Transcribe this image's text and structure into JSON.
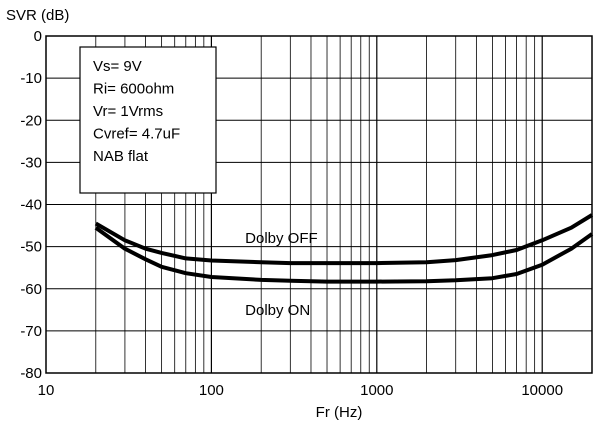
{
  "chart_data": {
    "type": "line",
    "ylabel": "SVR (dB)",
    "xlabel": "Fr (Hz)",
    "x_scale": "log",
    "xlim": [
      10,
      20000
    ],
    "ylim": [
      -80,
      0
    ],
    "grid": true,
    "x_tick_labels": [
      {
        "value": 10,
        "label": "10"
      },
      {
        "value": 100,
        "label": "100"
      },
      {
        "value": 1000,
        "label": "1000"
      },
      {
        "value": 10000,
        "label": "10000"
      }
    ],
    "y_tick_labels": [
      {
        "value": 0,
        "label": "0"
      },
      {
        "value": -10,
        "label": "-10"
      },
      {
        "value": -20,
        "label": "-20"
      },
      {
        "value": -30,
        "label": "-30"
      },
      {
        "value": -40,
        "label": "-40"
      },
      {
        "value": -50,
        "label": "-50"
      },
      {
        "value": -60,
        "label": "-60"
      },
      {
        "value": -70,
        "label": "-70"
      },
      {
        "value": -80,
        "label": "-80"
      }
    ],
    "conditions_box": [
      "Vs= 9V",
      "Ri= 600ohm",
      "Vr= 1Vrms",
      "Cvref= 4.7uF",
      "NAB flat"
    ],
    "series": [
      {
        "name": "Dolby OFF",
        "x": [
          20,
          30,
          40,
          50,
          70,
          100,
          200,
          300,
          500,
          1000,
          2000,
          3000,
          5000,
          7000,
          10000,
          15000,
          20000
        ],
        "y": [
          -44.5,
          -48.5,
          -50.5,
          -51.5,
          -52.8,
          -53.3,
          -53.7,
          -53.9,
          -53.9,
          -53.9,
          -53.7,
          -53.2,
          -52.0,
          -50.8,
          -48.5,
          -45.5,
          -42.5
        ]
      },
      {
        "name": "Dolby ON",
        "x": [
          20,
          30,
          40,
          50,
          70,
          100,
          200,
          300,
          500,
          1000,
          2000,
          3000,
          5000,
          7000,
          10000,
          15000,
          20000
        ],
        "y": [
          -45.5,
          -50.5,
          -53.0,
          -54.8,
          -56.3,
          -57.2,
          -57.9,
          -58.1,
          -58.3,
          -58.3,
          -58.2,
          -58.0,
          -57.5,
          -56.5,
          -54.3,
          -50.5,
          -47.0
        ]
      }
    ],
    "series_labels": [
      {
        "series": "Dolby OFF",
        "text": "Dolby OFF",
        "x": 160,
        "y": -48
      },
      {
        "series": "Dolby ON",
        "text": "Dolby ON",
        "x": 160,
        "y": -65
      }
    ]
  }
}
